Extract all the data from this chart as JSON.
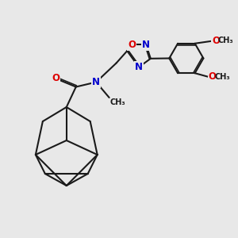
{
  "bg_color": "#e8e8e8",
  "bond_color": "#1a1a1a",
  "bond_width": 1.5,
  "atom_colors": {
    "O": "#dd0000",
    "N": "#0000cc",
    "C": "#1a1a1a"
  },
  "font_size": 8.5,
  "xlim": [
    0,
    10
  ],
  "ylim": [
    0,
    10
  ]
}
